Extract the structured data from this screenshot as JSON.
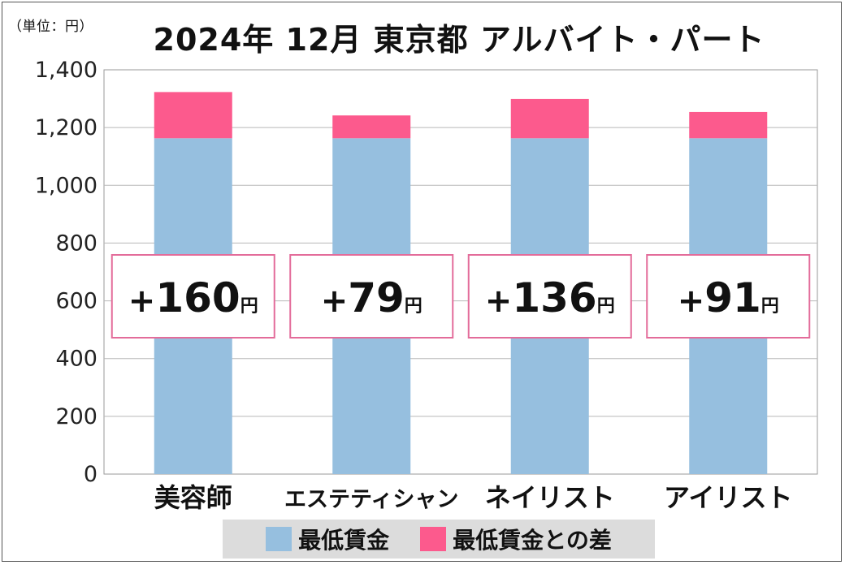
{
  "unit_label": "（単位：円）",
  "chart_data": {
    "type": "bar",
    "stacked": true,
    "title": "2024年 12月  東京都  アルバイト・パート",
    "categories": [
      "美容師",
      "エステティシャン",
      "ネイリスト",
      "アイリスト"
    ],
    "series": [
      {
        "name": "最低賃金",
        "color": "#96bfdf",
        "values": [
          1163,
          1163,
          1163,
          1163
        ]
      },
      {
        "name": "最低賃金との差",
        "color": "#fc5a8d",
        "values": [
          160,
          79,
          136,
          91
        ]
      }
    ],
    "data_labels": [
      {
        "sign": "+",
        "number": "160",
        "unit": "円"
      },
      {
        "sign": "+",
        "number": "79",
        "unit": "円"
      },
      {
        "sign": "+",
        "number": "136",
        "unit": "円"
      },
      {
        "sign": "+",
        "number": "91",
        "unit": "円"
      }
    ],
    "yticks": [
      "0",
      "200",
      "400",
      "600",
      "800",
      "1,000",
      "1,200",
      "1,400"
    ],
    "ylim": [
      0,
      1400
    ],
    "grid": true,
    "legend": "bottom"
  }
}
